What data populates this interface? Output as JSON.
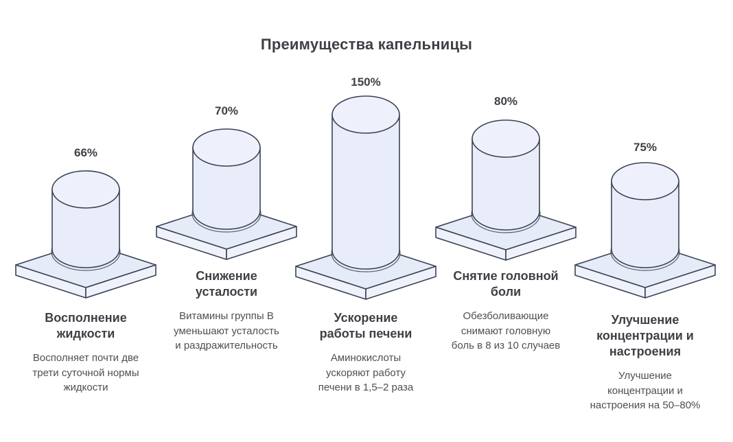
{
  "title": "Преимущества капельницы",
  "columns": [
    {
      "value_label": "66%",
      "title": "Восполнение\nжидкости",
      "description": "Восполняет почти две\nтрети суточной нормы\nжидкости"
    },
    {
      "value_label": "70%",
      "title": "Снижение\nусталости",
      "description": "Витамины группы В\nуменьшают усталость\nи раздражительность"
    },
    {
      "value_label": "150%",
      "title": "Ускорение\nработы печени",
      "description": "Аминокислоты\nускоряют работу\nпечени в 1,5–2 раза"
    },
    {
      "value_label": "80%",
      "title": "Снятие головной\nболи",
      "description": "Обезболивающие\nснимают головную\nболь в 8 из 10 случаев"
    },
    {
      "value_label": "75%",
      "title": "Улучшение\nконцентрации и\nнастроения",
      "description": "Улучшение\nконцентрации и\nнастроения на 50–80%"
    }
  ],
  "chart_data": {
    "type": "bar",
    "subtype": "isometric-3d-cylinders-on-pedestals",
    "title": "Преимущества капельницы",
    "categories": [
      "Восполнение жидкости",
      "Снижение усталости",
      "Ускорение работы печени",
      "Снятие головной боли",
      "Улучшение концентрации и настроения"
    ],
    "values": [
      66,
      70,
      150,
      80,
      75
    ],
    "value_labels": [
      "66%",
      "70%",
      "150%",
      "80%",
      "75%"
    ],
    "annotations": [
      "Восполняет почти две трети суточной нормы жидкости",
      "Витамины группы В уменьшают усталость и раздражительность",
      "Аминокислоты ускоряют работу печени в 1,5–2 раза",
      "Обезболивающие снимают головную боль в 8 из 10 случаев",
      "Улучшение концентрации и настроения на 50–80%"
    ],
    "xlabel": "",
    "ylabel": "",
    "grid": false,
    "legend": false,
    "layout_hint": "five staggered columns, value label above each cylinder, no axes",
    "colors": {
      "background": "#FFFFFF",
      "cylinder_fill": "#E9EDFA",
      "cylinder_top_fill": "#EEF1FC",
      "platform_top_fill": "#E6EBF8",
      "platform_side_fill": "#EFF2FB",
      "outline": "#3A4254",
      "text_dark": "#3D4045",
      "text_gray": "#4E4E55"
    }
  }
}
